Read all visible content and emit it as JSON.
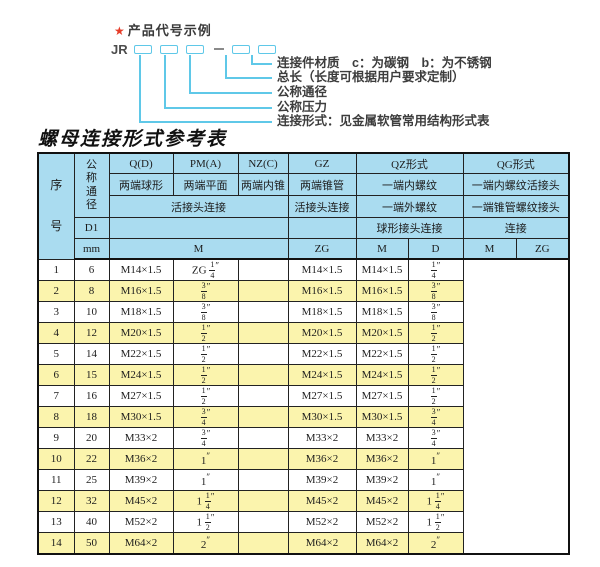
{
  "diagram": {
    "star": "★",
    "title": "产品代号示例",
    "code_prefix": "JR",
    "labels": [
      "连接件材质　c：为碳钢　b：为不锈钢",
      "总长（长度可根据用户要求定制）",
      "公称通径",
      "公称压力",
      "连接形式：见金属软管常用结构形式表"
    ]
  },
  "table": {
    "title": "螺母连接形式参考表",
    "header": {
      "serial": "序号",
      "dn": "公称通径",
      "d1": "D1",
      "mm": "mm",
      "q": "Q(D)",
      "pm": "PM(A)",
      "nz": "NZ(C)",
      "gz": "GZ",
      "qz": "QZ形式",
      "qg": "QG形式",
      "q_desc": "两端球形",
      "pm_desc": "两端平面",
      "nz_desc": "两端内锥",
      "gz_desc": "两端锥管",
      "qz_desc1": "一端内螺纹",
      "qg_desc1": "一端内螺纹活接头",
      "union_conn": "活接头连接",
      "gz_conn": "活接头连接",
      "qz_desc2": "一端外螺纹",
      "qg_desc2": "一端锥管螺纹接头",
      "qz_desc3": "球形接头连接",
      "qg_desc3": "连接",
      "m": "M",
      "zg": "ZG",
      "d": "D"
    },
    "rows": [
      [
        "1",
        "6",
        "M14×1.5",
        "ZG 1/4″",
        "",
        "M14×1.5",
        "M14×1.5",
        "1/4″"
      ],
      [
        "2",
        "8",
        "M16×1.5",
        "3/8″",
        "",
        "M16×1.5",
        "M16×1.5",
        "3/8″"
      ],
      [
        "3",
        "10",
        "M18×1.5",
        "3/8″",
        "",
        "M18×1.5",
        "M18×1.5",
        "3/8″"
      ],
      [
        "4",
        "12",
        "M20×1.5",
        "1/2″",
        "",
        "M20×1.5",
        "M20×1.5",
        "1/2″"
      ],
      [
        "5",
        "14",
        "M22×1.5",
        "1/2″",
        "",
        "M22×1.5",
        "M22×1.5",
        "1/2″"
      ],
      [
        "6",
        "15",
        "M24×1.5",
        "1/2″",
        "",
        "M24×1.5",
        "M24×1.5",
        "1/2″"
      ],
      [
        "7",
        "16",
        "M27×1.5",
        "1/2″",
        "",
        "M27×1.5",
        "M27×1.5",
        "1/2″"
      ],
      [
        "8",
        "18",
        "M30×1.5",
        "3/4″",
        "",
        "M30×1.5",
        "M30×1.5",
        "3/4″"
      ],
      [
        "9",
        "20",
        "M33×2",
        "3/4″",
        "",
        "M33×2",
        "M33×2",
        "3/4″"
      ],
      [
        "10",
        "22",
        "M36×2",
        "1″",
        "",
        "M36×2",
        "M36×2",
        "1″"
      ],
      [
        "11",
        "25",
        "M39×2",
        "1″",
        "",
        "M39×2",
        "M39×2",
        "1″"
      ],
      [
        "12",
        "32",
        "M45×2",
        "1 1/4″",
        "",
        "M45×2",
        "M45×2",
        "1 1/4″"
      ],
      [
        "13",
        "40",
        "M52×2",
        "1 1/2″",
        "",
        "M52×2",
        "M52×2",
        "1 1/2″"
      ],
      [
        "14",
        "50",
        "M64×2",
        "2″",
        "",
        "M64×2",
        "M64×2",
        "2″"
      ]
    ]
  },
  "colors": {
    "header_blue": "#aadcf0",
    "row_yellow": "#fbf4ad",
    "line_cyan": "#5fc8e8",
    "star_red": "#e63c28"
  }
}
